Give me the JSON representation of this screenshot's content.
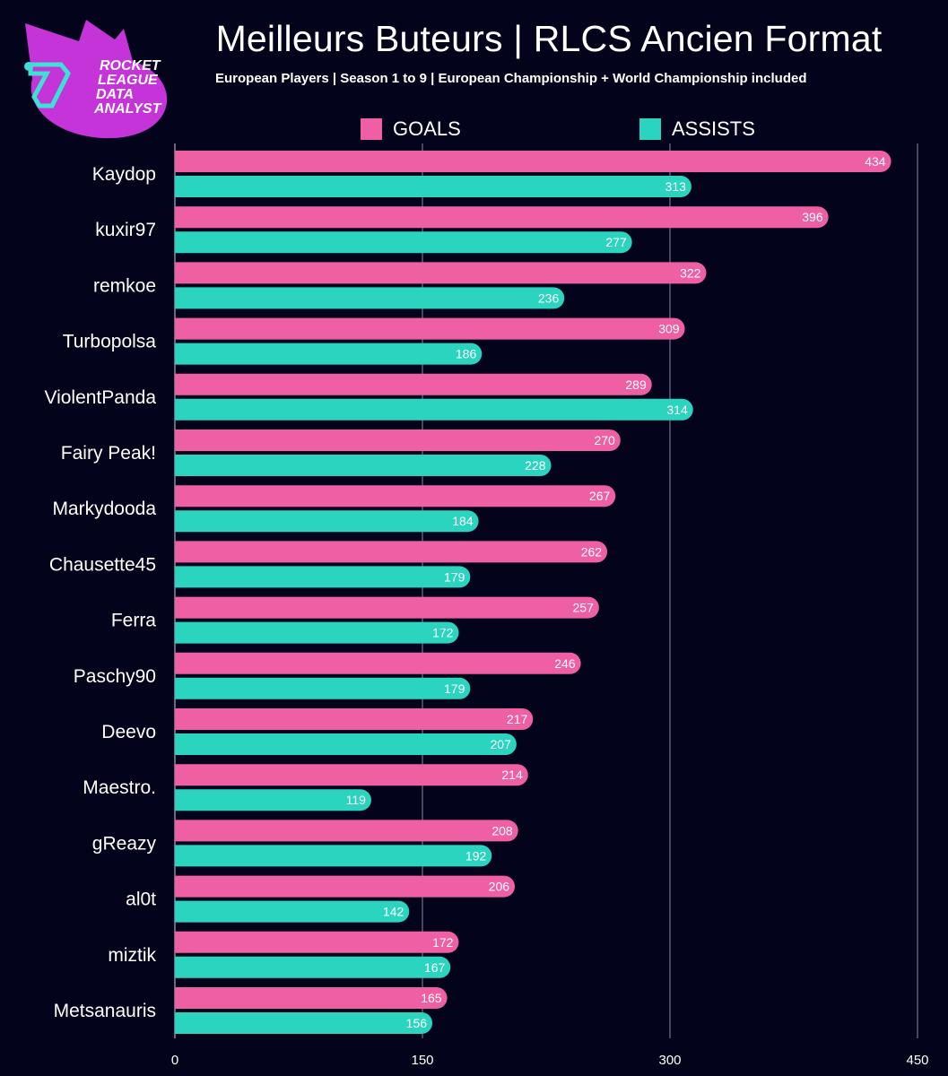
{
  "title": "Meilleurs Buteurs | RLCS Ancien Format",
  "subtitle": "European Players | Season 1 to 9 | European Championship + World Championship included",
  "logo": {
    "line1": "ROCKET",
    "line2": "LEAGUE",
    "line3": "DATA",
    "line4": "ANALYST",
    "colors": {
      "blob": "#c434d8",
      "mark": "#3ee0d4"
    }
  },
  "colors": {
    "background": "#03031c",
    "goals": "#ee5fa3",
    "assists": "#2bd4bf",
    "gridline": "#8a8aa0"
  },
  "chart_data": {
    "type": "bar",
    "orientation": "horizontal",
    "categories": [
      "Kaydop",
      "kuxir97",
      "remkoe",
      "Turbopolsa",
      "ViolentPanda",
      "Fairy Peak!",
      "Markydooda",
      "Chausette45",
      "Ferra",
      "Paschy90",
      "Deevo",
      "Maestro.",
      "gReazy",
      "al0t",
      "miztik",
      "Metsanauris"
    ],
    "series": [
      {
        "name": "GOALS",
        "values": [
          434,
          396,
          322,
          309,
          289,
          270,
          267,
          262,
          257,
          246,
          217,
          214,
          208,
          206,
          172,
          165
        ]
      },
      {
        "name": "ASSISTS",
        "values": [
          313,
          277,
          236,
          186,
          314,
          228,
          184,
          179,
          172,
          179,
          207,
          119,
          192,
          142,
          167,
          156
        ]
      }
    ],
    "xlim": [
      0,
      450
    ],
    "xticks": [
      0,
      150,
      300,
      450
    ],
    "grid": true,
    "legend_position": "top"
  }
}
